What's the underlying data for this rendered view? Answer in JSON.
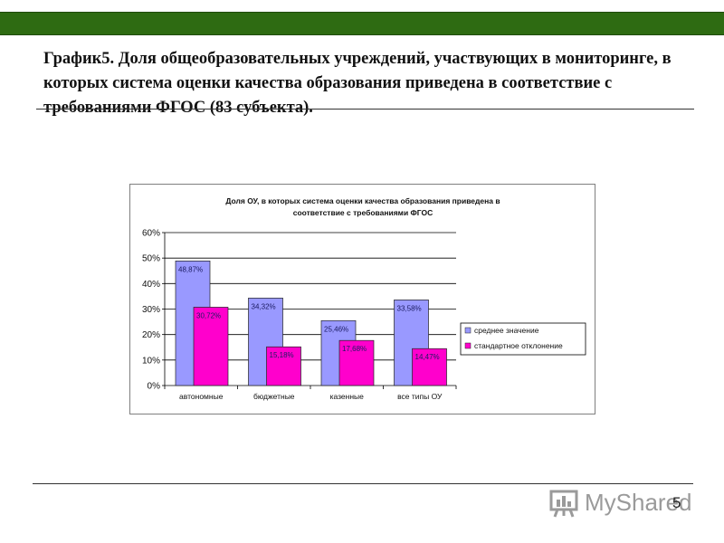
{
  "slide": {
    "title": "График5. Доля общеобразовательных учреждений, участвующих в мониторинге,  в которых система оценки качества образования приведена в соответствие с требованиями ФГОС (83 субъекта).",
    "page_number": "5",
    "watermark": "MyShared",
    "colors": {
      "top_bar": "#2e6b12"
    }
  },
  "chart_data": {
    "type": "bar",
    "title_line1": "Доля ОУ, в которых система оценки качества образования приведена в",
    "title_line2": "соответствие с требованиями ФГОС",
    "categories": [
      "автономные",
      "бюджетные",
      "казенные",
      "все типы ОУ"
    ],
    "series": [
      {
        "name": "среднее значение",
        "values": [
          48.87,
          34.32,
          25.46,
          33.58
        ],
        "labels": [
          "48,87%",
          "34,32%",
          "25,46%",
          "33,58%"
        ],
        "color": "#9999ff"
      },
      {
        "name": "стандартное отклонение",
        "values": [
          30.72,
          15.18,
          17.68,
          14.47
        ],
        "labels": [
          "30,72%",
          "15,18%",
          "17,68%",
          "14,47%"
        ],
        "color": "#ff00cc"
      }
    ],
    "ylim": [
      0,
      60
    ],
    "yticks": [
      0,
      10,
      20,
      30,
      40,
      50,
      60
    ],
    "ytick_labels": [
      "0%",
      "10%",
      "20%",
      "30%",
      "40%",
      "50%",
      "60%"
    ],
    "grid": true,
    "legend_position": "right"
  }
}
